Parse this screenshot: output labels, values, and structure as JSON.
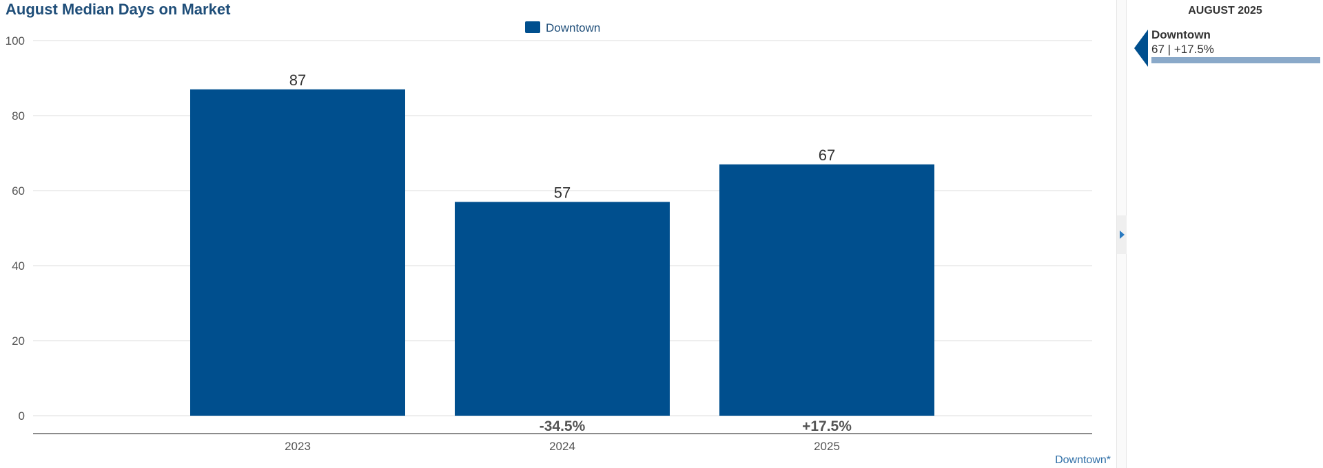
{
  "title": "August Median Days on Market",
  "footnote": "Downtown*",
  "chart_data": {
    "type": "bar",
    "title": "August Median Days on Market",
    "categories": [
      "2023",
      "2024",
      "2025"
    ],
    "series": [
      {
        "name": "Downtown",
        "values": [
          87,
          57,
          67
        ],
        "color": "#004f8e"
      }
    ],
    "change_labels": [
      "",
      "-34.5%",
      "+17.5%"
    ],
    "xlabel": "",
    "ylabel": "",
    "ylim": [
      0,
      100
    ],
    "yticks": [
      0,
      20,
      40,
      60,
      80,
      100
    ],
    "grid": true,
    "legend": "top-center"
  },
  "side_panel": {
    "header": "AUGUST 2025",
    "items": [
      {
        "name": "Downtown",
        "value": "67 | +17.5%",
        "fill": 1.0
      }
    ]
  },
  "colors": {
    "bar": "#004f8e",
    "title": "#1f4e79",
    "grid": "#dddddd",
    "accent": "#2a7ac0"
  }
}
